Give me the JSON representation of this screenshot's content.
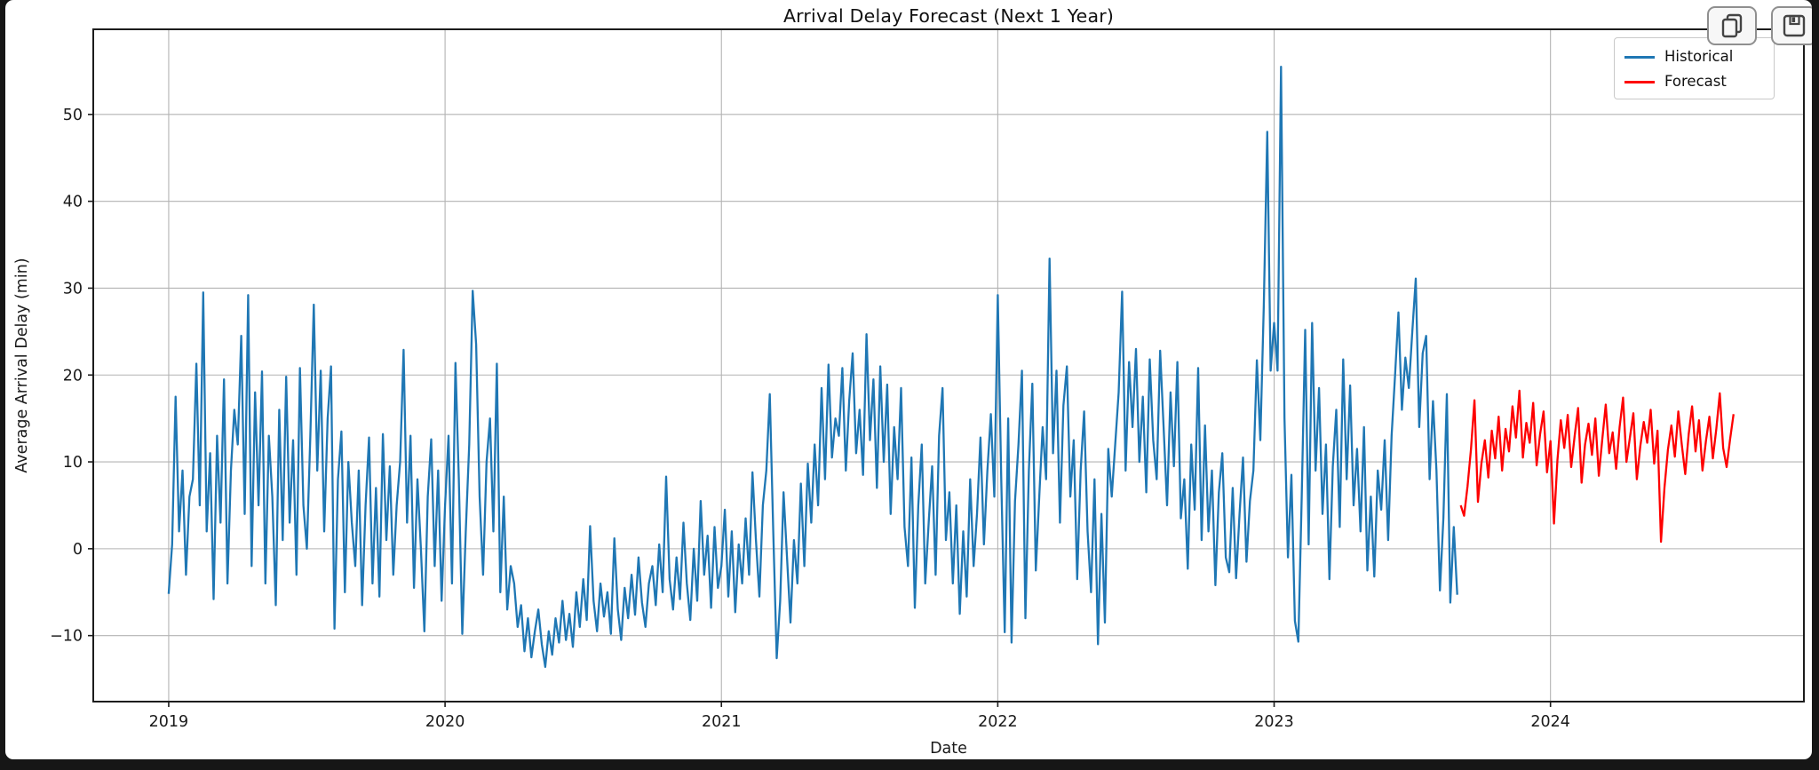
{
  "window": {
    "toolbar": {
      "copy_button": "copy",
      "save_button": "save"
    }
  },
  "chart_data": {
    "type": "line",
    "title": "Arrival Delay Forecast (Next 1 Year)",
    "xlabel": "Date",
    "ylabel": "Average Arrival Delay (min)",
    "grid": true,
    "x_ticks": [
      2019,
      2020,
      2021,
      2022,
      2023,
      2024
    ],
    "x_tick_labels": [
      "2019",
      "2020",
      "2021",
      "2022",
      "2023",
      "2024"
    ],
    "y_ticks": [
      -10,
      0,
      10,
      20,
      30,
      40,
      50
    ],
    "xlim": [
      2018.727,
      2024.917
    ],
    "ylim": [
      -17.6,
      59.8
    ],
    "legend": {
      "position": "upper right",
      "entries": [
        {
          "label": "Historical",
          "color": "#1f77b4"
        },
        {
          "label": "Forecast",
          "color": "#fe0000"
        }
      ]
    },
    "series": [
      {
        "name": "Historical",
        "color": "#1f77b4",
        "x_start": 2019.0,
        "x_step": 0.0125,
        "y": [
          -5.2,
          0.5,
          17.5,
          2,
          9,
          -3,
          6,
          8,
          21.3,
          5,
          29.5,
          2,
          11,
          -5.8,
          13,
          3,
          19.5,
          -4,
          9,
          16,
          12,
          24.5,
          4,
          29.2,
          -2,
          18,
          5,
          20.4,
          -4,
          13,
          6,
          -6.5,
          16,
          1,
          19.8,
          3,
          12.5,
          -3,
          20.8,
          5,
          0,
          13,
          28.1,
          9,
          20.5,
          2,
          15,
          21,
          -9.2,
          8,
          13.5,
          -5,
          10,
          3,
          -2,
          9,
          -6.5,
          5,
          12.8,
          -4,
          7,
          -5.5,
          13.2,
          1,
          9.5,
          -3,
          5,
          10,
          22.9,
          3,
          13,
          -4.5,
          8,
          0,
          -9.5,
          6,
          12.6,
          -2,
          9,
          -6,
          5,
          13,
          -4,
          21.4,
          8,
          -9.8,
          2,
          12,
          29.7,
          23.5,
          6,
          -3,
          10,
          15,
          2,
          21.3,
          -5,
          6,
          -7,
          -2,
          -4,
          -9,
          -6.5,
          -11.8,
          -8,
          -12.5,
          -9.5,
          -7,
          -11,
          -13.6,
          -9.5,
          -12.2,
          -8,
          -10.8,
          -6,
          -10.5,
          -7.5,
          -11.3,
          -5,
          -9,
          -3.5,
          -8.2,
          2.6,
          -6,
          -9.5,
          -4,
          -7.8,
          -5,
          -9.8,
          1.2,
          -7,
          -10.5,
          -4.5,
          -8,
          -3,
          -7.6,
          -1,
          -6.2,
          -9,
          -4,
          -2,
          -6.5,
          0.5,
          -5,
          8.3,
          -3.5,
          -7,
          -1,
          -5.8,
          3,
          -4,
          -8.2,
          0,
          -6,
          5.5,
          -3,
          1.5,
          -6.8,
          2.5,
          -4.5,
          -2,
          4.5,
          -5.5,
          2,
          -7.3,
          0.5,
          -4,
          3.5,
          -3,
          8.8,
          1,
          -5.5,
          5,
          9,
          17.8,
          2,
          -12.6,
          -6,
          6.5,
          -1,
          -8.5,
          1,
          -4,
          7.5,
          -2,
          9.8,
          3,
          12,
          5,
          18.5,
          8,
          21.2,
          10.5,
          15,
          13,
          20.8,
          9,
          17,
          22.5,
          11,
          16,
          8.5,
          24.7,
          12.5,
          19.5,
          7,
          21,
          10,
          18.9,
          4,
          14,
          8,
          18.5,
          2.5,
          -2,
          10.5,
          -6.8,
          5,
          12,
          -4,
          3,
          9.5,
          -3,
          13,
          18.5,
          1,
          6.5,
          -4,
          5,
          -7.5,
          2,
          -5.5,
          8,
          -2,
          4,
          12.8,
          0.5,
          9,
          15.5,
          6,
          29.2,
          8,
          -9.6,
          15,
          -10.8,
          5.5,
          12,
          20.5,
          -8,
          9,
          19,
          -2.5,
          6,
          14,
          8,
          33.4,
          11,
          20.5,
          3,
          16.5,
          21,
          6,
          12.5,
          -3.5,
          9,
          15.8,
          2,
          -5,
          8,
          -11,
          4,
          -8.5,
          11.5,
          6,
          12,
          18,
          29.6,
          9,
          21.5,
          14,
          23,
          10,
          17.5,
          6.5,
          21.8,
          12.5,
          8,
          22.8,
          14,
          5,
          18,
          9.5,
          21.5,
          3.5,
          8,
          -2.3,
          12,
          4.5,
          20.8,
          1,
          14.2,
          2,
          9,
          -4.2,
          6.5,
          11,
          -1,
          -2.7,
          7,
          -3.4,
          4,
          10.5,
          -1.5,
          5.5,
          9,
          21.7,
          12.5,
          28,
          48,
          20.5,
          26,
          20.5,
          55.5,
          15,
          -1,
          8.5,
          -8.3,
          -10.7,
          6,
          25.2,
          0.5,
          26,
          9,
          18.5,
          4,
          12,
          -3.5,
          9.5,
          16,
          2.5,
          21.8,
          8,
          18.8,
          5,
          11.5,
          2,
          14,
          -2.5,
          6,
          -3.2,
          9,
          4.5,
          12.5,
          1,
          13,
          20,
          27.2,
          16,
          22,
          18.5,
          25,
          31.1,
          14,
          22.5,
          24.5,
          8,
          17,
          9,
          -4.8,
          3.5,
          17.8,
          -6.2,
          2.5,
          -5.3
        ]
      },
      {
        "name": "Forecast",
        "color": "#fe0000",
        "x_start": 2023.675,
        "x_step": 0.0125,
        "y": [
          5,
          3.8,
          7.2,
          11.5,
          17.1,
          5.4,
          9.8,
          12.5,
          8.2,
          13.6,
          10.4,
          15.2,
          9,
          13.8,
          11.2,
          16.4,
          12.8,
          18.2,
          10.5,
          14.5,
          12.2,
          16.8,
          9.6,
          13.2,
          15.8,
          8.8,
          12.4,
          2.9,
          10.2,
          14.8,
          11.6,
          15.4,
          9.4,
          13,
          16.2,
          7.6,
          12,
          14.4,
          10.8,
          15,
          8.4,
          12.6,
          16.6,
          11,
          13.4,
          9.2,
          14,
          17.4,
          10,
          12.8,
          15.6,
          8,
          11.8,
          14.6,
          12.2,
          16,
          9.8,
          13.6,
          0.8,
          7,
          11.4,
          14.2,
          10.6,
          15.8,
          12,
          8.6,
          13.2,
          16.4,
          11.2,
          14.8,
          9,
          12.4,
          15.2,
          10.4,
          13.8,
          17.9,
          11.6,
          9.4,
          12.6,
          15.5
        ]
      }
    ]
  }
}
